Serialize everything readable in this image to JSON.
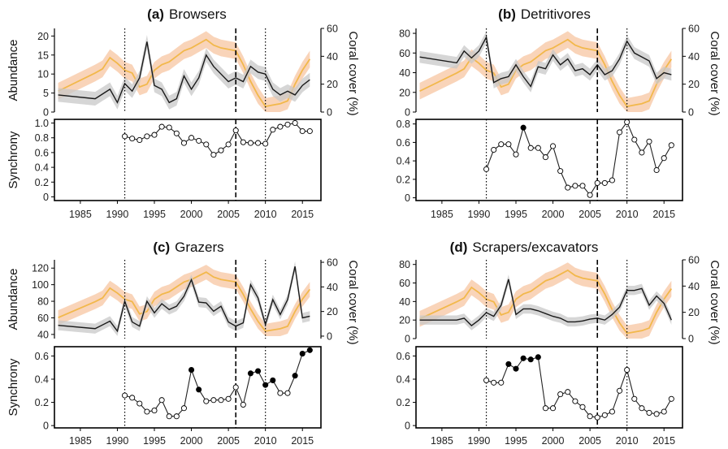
{
  "figure": {
    "background": "#ffffff",
    "colors": {
      "coral_line": "#f2b84b",
      "coral_band": "#f7c9a8",
      "abund_line": "#1a1a1a",
      "abund_band": "#c8c8c8",
      "frame": "#000000"
    }
  },
  "chart_data": [
    {
      "panel": "(a)",
      "title_letter": "(a)",
      "title_text": "Browsers",
      "type": "line",
      "top": {
        "ylabel": "Abundance",
        "y2label": "Coral cover (%)",
        "ylim": [
          0,
          22
        ],
        "yticks": [
          0,
          5,
          10,
          15,
          20
        ],
        "y2lim": [
          0,
          60
        ],
        "y2ticks": [
          0,
          20,
          40,
          60
        ],
        "abundance": {
          "x": [
            1982,
            1987,
            1989,
            1990,
            1991,
            1992,
            1993,
            1994,
            1995,
            1996,
            1997,
            1998,
            1999,
            2000,
            2001,
            2002,
            2003,
            2004,
            2005,
            2006,
            2007,
            2008,
            2009,
            2010,
            2011,
            2012,
            2013,
            2014,
            2015,
            2016
          ],
          "y": [
            4.5,
            3.5,
            6,
            2.5,
            7.5,
            5.5,
            9,
            18.5,
            7,
            6,
            2.5,
            3.5,
            9.5,
            6,
            9,
            15,
            12,
            10,
            8,
            9,
            8,
            12,
            10.5,
            10,
            6,
            4.5,
            5.5,
            4.5,
            7,
            8.5
          ],
          "band": 1.8
        },
        "coral_cover": {
          "x": [
            1982,
            1987,
            1988,
            1989,
            1990,
            1991,
            1992,
            1993,
            1994,
            1995,
            1996,
            1997,
            1998,
            1999,
            2000,
            2001,
            2002,
            2003,
            2004,
            2005,
            2006,
            2007,
            2008,
            2009,
            2010,
            2011,
            2012,
            2013,
            2014,
            2015,
            2016
          ],
          "y": [
            15,
            28,
            31,
            39,
            35,
            30,
            28,
            18,
            20,
            30,
            34,
            36,
            40,
            44,
            46,
            49,
            52,
            48,
            46,
            45,
            44,
            34,
            22,
            12,
            4,
            5,
            6,
            8,
            20,
            30,
            38
          ],
          "band": 6
        }
      },
      "bottom": {
        "ylabel": "Synchrony",
        "ylim": [
          -0.05,
          1.05
        ],
        "yticks": [
          "0",
          "0.2",
          "0.4",
          "0.6",
          "0.8",
          "1.0"
        ],
        "yticks_values": [
          0,
          0.2,
          0.4,
          0.6,
          0.8,
          1.0
        ],
        "x": [
          1991,
          1992,
          1993,
          1994,
          1995,
          1996,
          1997,
          1998,
          1999,
          2000,
          2001,
          2002,
          2003,
          2004,
          2005,
          2006,
          2007,
          2008,
          2009,
          2010,
          2011,
          2012,
          2013,
          2014,
          2015,
          2016
        ],
        "y": [
          0.82,
          0.79,
          0.77,
          0.82,
          0.84,
          0.95,
          0.94,
          0.86,
          0.73,
          0.8,
          0.76,
          0.71,
          0.57,
          0.63,
          0.71,
          0.9,
          0.74,
          0.73,
          0.73,
          0.72,
          0.91,
          0.95,
          0.98,
          1.0,
          0.89,
          0.89
        ],
        "significant": [
          false,
          false,
          false,
          false,
          false,
          false,
          false,
          false,
          false,
          false,
          false,
          false,
          false,
          false,
          false,
          false,
          false,
          false,
          false,
          false,
          false,
          false,
          false,
          false,
          false,
          false
        ]
      }
    },
    {
      "panel": "(b)",
      "title_letter": "(b)",
      "title_text": "Detritivores",
      "type": "line",
      "top": {
        "ylabel": "",
        "y2label": "Coral cover (%)",
        "ylim": [
          0,
          85
        ],
        "yticks": [
          0,
          20,
          40,
          60,
          80
        ],
        "y2lim": [
          0,
          60
        ],
        "y2ticks": [
          0,
          20,
          40,
          60
        ],
        "abundance": {
          "x": [
            1982,
            1987,
            1988,
            1989,
            1990,
            1991,
            1992,
            1993,
            1994,
            1995,
            1996,
            1997,
            1998,
            1999,
            2000,
            2001,
            2002,
            2003,
            2004,
            2005,
            2006,
            2007,
            2008,
            2009,
            2010,
            2011,
            2012,
            2013,
            2014,
            2015,
            2016
          ],
          "y": [
            56,
            50,
            62,
            55,
            62,
            76,
            30,
            34,
            36,
            48,
            36,
            26,
            46,
            44,
            58,
            48,
            54,
            42,
            44,
            38,
            48,
            38,
            42,
            54,
            72,
            60,
            56,
            52,
            34,
            40,
            38
          ],
          "band": 6
        },
        "coral_cover": {
          "x": [
            1982,
            1987,
            1988,
            1989,
            1990,
            1991,
            1992,
            1993,
            1994,
            1995,
            1996,
            1997,
            1998,
            1999,
            2000,
            2001,
            2002,
            2003,
            2004,
            2005,
            2006,
            2007,
            2008,
            2009,
            2010,
            2011,
            2012,
            2013,
            2014,
            2015,
            2016
          ],
          "y": [
            15,
            28,
            31,
            39,
            35,
            30,
            28,
            18,
            20,
            30,
            34,
            36,
            40,
            44,
            46,
            49,
            52,
            48,
            46,
            45,
            44,
            34,
            22,
            12,
            4,
            5,
            6,
            8,
            20,
            30,
            38
          ],
          "band": 6
        }
      },
      "bottom": {
        "ylabel": "",
        "ylim": [
          -0.03,
          0.85
        ],
        "yticks": [
          "0",
          "0.2",
          "0.4",
          "0.6",
          "0.8"
        ],
        "yticks_values": [
          0,
          0.2,
          0.4,
          0.6,
          0.8
        ],
        "x": [
          1991,
          1992,
          1993,
          1994,
          1995,
          1996,
          1997,
          1998,
          1999,
          2000,
          2001,
          2002,
          2003,
          2004,
          2005,
          2006,
          2007,
          2008,
          2009,
          2010,
          2011,
          2012,
          2013,
          2014,
          2015,
          2016
        ],
        "y": [
          0.31,
          0.52,
          0.58,
          0.58,
          0.47,
          0.76,
          0.54,
          0.54,
          0.44,
          0.56,
          0.29,
          0.11,
          0.13,
          0.13,
          0.03,
          0.16,
          0.16,
          0.19,
          0.71,
          0.82,
          0.63,
          0.49,
          0.61,
          0.3,
          0.43,
          0.57
        ],
        "significant": [
          false,
          false,
          false,
          false,
          false,
          true,
          false,
          false,
          false,
          false,
          false,
          false,
          false,
          false,
          false,
          false,
          false,
          false,
          false,
          false,
          false,
          false,
          false,
          false,
          false,
          false
        ]
      }
    },
    {
      "panel": "(c)",
      "title_letter": "(c)",
      "title_text": "Grazers",
      "type": "line",
      "top": {
        "ylabel": "Abundance",
        "y2label": "Coral cover (%)",
        "ylim": [
          35,
          130
        ],
        "yticks": [
          40,
          60,
          80,
          100,
          120
        ],
        "y2lim": [
          -2,
          62
        ],
        "y2ticks": [
          0,
          20,
          40,
          60
        ],
        "abundance": {
          "x": [
            1982,
            1987,
            1989,
            1990,
            1991,
            1992,
            1993,
            1994,
            1995,
            1996,
            1997,
            1998,
            1999,
            2000,
            2001,
            2002,
            2003,
            2004,
            2005,
            2006,
            2007,
            2008,
            2009,
            2010,
            2011,
            2012,
            2013,
            2014,
            2015,
            2016
          ],
          "y": [
            51,
            47,
            56,
            44,
            80,
            55,
            50,
            80,
            66,
            77,
            70,
            74,
            86,
            106,
            79,
            78,
            68,
            74,
            55,
            50,
            54,
            100,
            84,
            52,
            82,
            64,
            82,
            122,
            60,
            62
          ],
          "band": 6
        },
        "coral_cover": {
          "x": [
            1982,
            1987,
            1988,
            1989,
            1990,
            1991,
            1992,
            1993,
            1994,
            1995,
            1996,
            1997,
            1998,
            1999,
            2000,
            2001,
            2002,
            2003,
            2004,
            2005,
            2006,
            2007,
            2008,
            2009,
            2010,
            2011,
            2012,
            2013,
            2014,
            2015,
            2016
          ],
          "y": [
            15,
            28,
            31,
            39,
            35,
            30,
            28,
            18,
            20,
            30,
            34,
            36,
            40,
            44,
            46,
            49,
            52,
            48,
            46,
            45,
            44,
            34,
            22,
            12,
            4,
            5,
            6,
            8,
            20,
            30,
            38
          ],
          "band": 6
        }
      },
      "bottom": {
        "ylabel": "Synchrony",
        "ylim": [
          -0.02,
          0.68
        ],
        "yticks": [
          "0",
          "0.2",
          "0.4",
          "0.6"
        ],
        "yticks_values": [
          0,
          0.2,
          0.4,
          0.6
        ],
        "x": [
          1991,
          1992,
          1993,
          1994,
          1995,
          1996,
          1997,
          1998,
          1999,
          2000,
          2001,
          2002,
          2003,
          2004,
          2005,
          2006,
          2007,
          2008,
          2009,
          2010,
          2011,
          2012,
          2013,
          2014,
          2015,
          2016
        ],
        "y": [
          0.26,
          0.24,
          0.19,
          0.12,
          0.13,
          0.22,
          0.08,
          0.08,
          0.15,
          0.48,
          0.31,
          0.21,
          0.22,
          0.22,
          0.23,
          0.33,
          0.18,
          0.45,
          0.47,
          0.35,
          0.39,
          0.28,
          0.28,
          0.43,
          0.62,
          0.65
        ],
        "significant": [
          false,
          false,
          false,
          false,
          false,
          false,
          false,
          false,
          false,
          true,
          true,
          false,
          false,
          false,
          false,
          false,
          false,
          true,
          true,
          true,
          true,
          false,
          false,
          true,
          true,
          true
        ]
      }
    },
    {
      "panel": "(d)",
      "title_letter": "(d)",
      "title_text": "Scrapers/excavators",
      "type": "line",
      "top": {
        "ylabel": "",
        "y2label": "Coral cover (%)",
        "ylim": [
          0,
          85
        ],
        "yticks": [
          0,
          20,
          40,
          60,
          80
        ],
        "y2lim": [
          0,
          60
        ],
        "y2ticks": [
          0,
          20,
          40,
          60
        ],
        "abundance": {
          "x": [
            1982,
            1987,
            1988,
            1989,
            1990,
            1991,
            1992,
            1993,
            1994,
            1995,
            1996,
            1997,
            1998,
            1999,
            2000,
            2001,
            2002,
            2003,
            2004,
            2005,
            2006,
            2007,
            2008,
            2009,
            2010,
            2011,
            2012,
            2013,
            2014,
            2015,
            2016
          ],
          "y": [
            20,
            20,
            22,
            14,
            20,
            28,
            24,
            36,
            64,
            26,
            32,
            32,
            30,
            27,
            24,
            22,
            18,
            18,
            19,
            21,
            22,
            20,
            26,
            34,
            52,
            52,
            54,
            36,
            46,
            38,
            20
          ],
          "band": 5
        },
        "coral_cover": {
          "x": [
            1982,
            1987,
            1988,
            1989,
            1990,
            1991,
            1992,
            1993,
            1994,
            1995,
            1996,
            1997,
            1998,
            1999,
            2000,
            2001,
            2002,
            2003,
            2004,
            2005,
            2006,
            2007,
            2008,
            2009,
            2010,
            2011,
            2012,
            2013,
            2014,
            2015,
            2016
          ],
          "y": [
            15,
            28,
            31,
            39,
            35,
            30,
            28,
            18,
            20,
            30,
            34,
            36,
            40,
            44,
            46,
            49,
            52,
            48,
            46,
            45,
            44,
            34,
            22,
            12,
            4,
            5,
            6,
            8,
            20,
            30,
            38
          ],
          "band": 6
        }
      },
      "bottom": {
        "ylabel": "",
        "ylim": [
          -0.02,
          0.68
        ],
        "yticks": [
          "0",
          "0.2",
          "0.4",
          "0.6"
        ],
        "yticks_values": [
          0,
          0.2,
          0.4,
          0.6
        ],
        "x": [
          1991,
          1992,
          1993,
          1994,
          1995,
          1996,
          1997,
          1998,
          1999,
          2000,
          2001,
          2002,
          2003,
          2004,
          2005,
          2006,
          2007,
          2008,
          2009,
          2010,
          2011,
          2012,
          2013,
          2014,
          2015,
          2016
        ],
        "y": [
          0.39,
          0.37,
          0.37,
          0.53,
          0.49,
          0.58,
          0.57,
          0.59,
          0.15,
          0.15,
          0.27,
          0.29,
          0.21,
          0.16,
          0.08,
          0.07,
          0.09,
          0.12,
          0.3,
          0.48,
          0.23,
          0.15,
          0.11,
          0.1,
          0.12,
          0.23
        ],
        "significant": [
          false,
          false,
          false,
          true,
          true,
          true,
          true,
          true,
          false,
          false,
          false,
          false,
          false,
          false,
          false,
          false,
          false,
          false,
          false,
          false,
          false,
          false,
          false,
          false,
          false,
          false
        ]
      }
    }
  ],
  "xaxis": {
    "xlim": [
      1981.5,
      2017.5
    ],
    "ticks": [
      1985,
      1990,
      1995,
      2000,
      2005,
      2010,
      2015
    ]
  },
  "reference_lines": {
    "dotted": [
      1991,
      2010
    ],
    "dashed": [
      2006
    ]
  }
}
